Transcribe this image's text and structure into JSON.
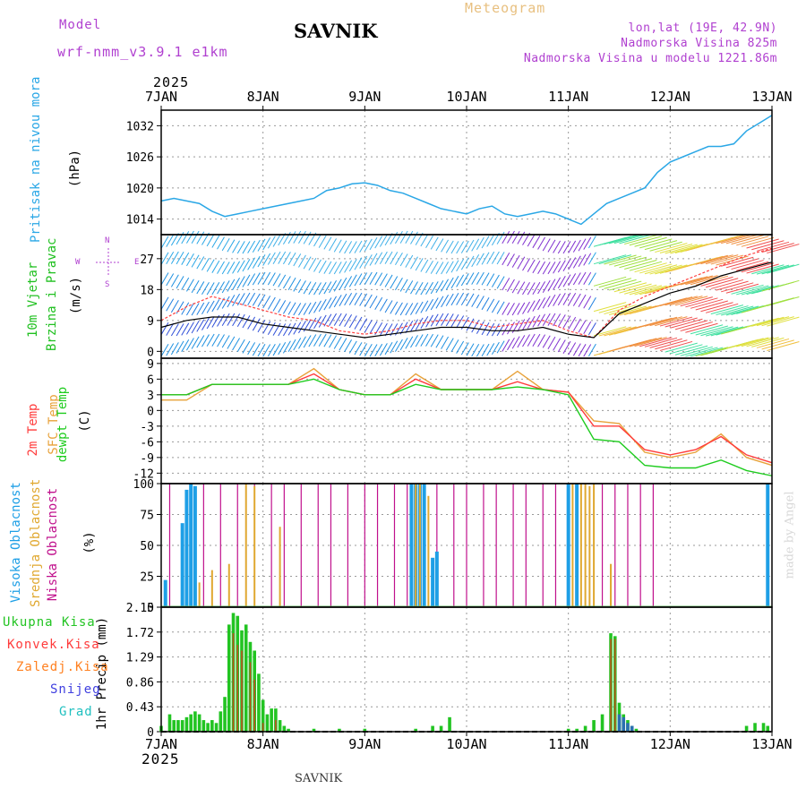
{
  "header": {
    "model_label": "Model",
    "model_name": "wrf-nmm_v3.9.1 e1km",
    "station": "SAVNIK",
    "meteogram": "Meteogram",
    "lonlat": "lon,lat (19E, 42.9N)",
    "altitude": "Nadmorska Visina 825m",
    "model_altitude": "Nadmorska Visina u modelu 1221.86m",
    "year_top": "2025",
    "year_bottom": "2025",
    "footer_station": "SAVNIK",
    "watermark": "made by Angel"
  },
  "colors": {
    "pressure": "#2aa7e6",
    "temp2m": "#ff3b3b",
    "sfc": "#e8a23a",
    "dewpt": "#1ecc1e",
    "high_cloud": "#1e9fe6",
    "mid_cloud": "#e0a830",
    "low_cloud": "#c0108c",
    "total_precip": "#22c422",
    "conv_precip": "#ff3b3b",
    "frozen": "#ff8020",
    "snow": "#4040e0",
    "graupel": "#20c0c0",
    "wind_label": "#20b020",
    "purple": "#b040d0"
  },
  "chart_data": [
    {
      "type": "line",
      "panel": "pressure",
      "ylabel": [
        "Pritisak na nivou mora",
        "(hPa)"
      ],
      "ylim": [
        1011,
        1035
      ],
      "yticks": [
        1014,
        1020,
        1026,
        1032
      ],
      "x_hours": [
        0,
        3,
        6,
        9,
        12,
        15,
        18,
        21,
        24,
        27,
        30,
        33,
        36,
        39,
        42,
        45,
        48,
        51,
        54,
        57,
        60,
        63,
        66,
        69,
        72,
        75,
        78,
        81,
        84,
        87,
        90,
        93,
        96,
        99,
        102,
        105,
        108,
        111,
        114,
        117,
        120,
        123,
        126,
        129,
        132,
        135,
        138,
        141,
        144
      ],
      "values": [
        1017.5,
        1018,
        1017.5,
        1017,
        1015.5,
        1014.5,
        1015,
        1015.5,
        1016,
        1016.5,
        1017,
        1017.5,
        1018,
        1019.5,
        1020,
        1020.8,
        1021,
        1020.5,
        1019.5,
        1019,
        1018,
        1017,
        1016,
        1015.5,
        1015,
        1016,
        1016.5,
        1015,
        1014.5,
        1015,
        1015.5,
        1015,
        1014,
        1013,
        1015,
        1017,
        1018,
        1019,
        1020,
        1023,
        1025,
        1026,
        1027,
        1028,
        1028,
        1028.5,
        1031,
        1032.5,
        1034
      ]
    },
    {
      "type": "line",
      "panel": "wind",
      "ylabel": [
        "10m Vjetar",
        "Brzina i Pravac",
        "(m/s)"
      ],
      "ylim": [
        -2,
        34
      ],
      "yticks": [
        0,
        9,
        18,
        27
      ],
      "compass": [
        "N",
        "W",
        "E",
        "S"
      ],
      "x_hours": [
        0,
        6,
        12,
        18,
        24,
        30,
        36,
        42,
        48,
        54,
        60,
        66,
        72,
        78,
        84,
        90,
        96,
        102,
        108,
        114,
        120,
        126,
        132,
        138,
        144
      ],
      "speed_red": [
        9,
        13,
        16,
        14,
        12,
        10,
        9,
        6,
        5,
        6,
        8,
        9,
        9,
        7,
        8,
        9,
        6,
        4,
        12,
        16,
        19,
        22,
        25,
        28,
        30
      ],
      "speed_black": [
        7,
        9,
        10,
        10,
        8,
        7,
        6,
        5,
        4,
        5,
        6,
        7,
        7,
        6,
        6,
        7,
        5,
        4,
        11,
        14,
        17,
        19,
        22,
        24,
        26
      ]
    },
    {
      "type": "line",
      "panel": "temperature",
      "ylabel": [
        "2m Temp",
        "SFC Temp",
        "dewpt Temp",
        "(C)"
      ],
      "ylim": [
        -14,
        10
      ],
      "yticks": [
        -12,
        -9,
        -6,
        -3,
        0,
        3,
        6,
        9
      ],
      "x_hours": [
        0,
        6,
        12,
        18,
        24,
        30,
        36,
        42,
        48,
        54,
        60,
        66,
        72,
        78,
        84,
        90,
        96,
        102,
        108,
        114,
        120,
        126,
        132,
        138,
        144
      ],
      "temp2m": [
        3,
        3,
        5,
        5,
        5,
        5,
        7,
        4,
        3,
        3,
        6,
        4,
        4,
        4,
        5.5,
        4,
        3.5,
        -3,
        -3,
        -7.5,
        -8.5,
        -7.5,
        -5,
        -8.5,
        -10
      ],
      "sfc": [
        2,
        2,
        5,
        5,
        5,
        5,
        8,
        4,
        3,
        3,
        7,
        4,
        4,
        4,
        7.5,
        4,
        3.5,
        -2,
        -2.5,
        -8,
        -9,
        -8,
        -4.5,
        -9,
        -10.5
      ],
      "dewpt": [
        3,
        3,
        5,
        5,
        5,
        5,
        6,
        4,
        3,
        3,
        5,
        4,
        4,
        4,
        4.5,
        4,
        3,
        -5.5,
        -6,
        -10.5,
        -11,
        -11,
        -9.5,
        -11.5,
        -12.5
      ]
    },
    {
      "type": "bar",
      "panel": "cloud",
      "ylabel": [
        "Visoka Oblacnost",
        "Srednja Oblacnost",
        "Niska Oblacnost",
        "(%)"
      ],
      "ylim": [
        0,
        100
      ],
      "yticks": [
        0,
        25,
        50,
        75,
        100
      ]
    },
    {
      "type": "bar",
      "panel": "precip",
      "ylabel": "1hr Precip (mm)",
      "ylim": [
        0,
        2.15
      ],
      "yticks": [
        0,
        0.43,
        0.86,
        1.29,
        1.72,
        2.15
      ],
      "legend": [
        "Ukupna Kisa",
        "Konvek.Kisa",
        "Zaledj.Kisa",
        "Snijeg",
        "Grad"
      ]
    }
  ],
  "x_axis": {
    "labels": [
      "7JAN",
      "8JAN",
      "9JAN",
      "10JAN",
      "11JAN",
      "12JAN",
      "13JAN"
    ]
  }
}
